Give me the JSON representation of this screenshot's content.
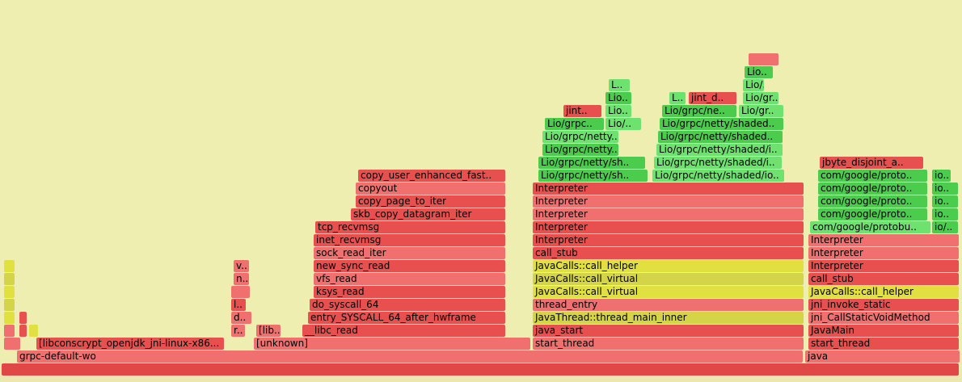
{
  "chart_data": {
    "type": "flamegraph",
    "title": "",
    "colors": {
      "kernel_red": "#e85050",
      "native_red": "#f07070",
      "jit_green": "#4ccc4c",
      "jit_green_light": "#6ee26e",
      "jvm_yellow": "#e0e040",
      "background": "#eeeeb0"
    },
    "frames": [
      {
        "d": 0,
        "s": 0.2,
        "w": 99.6,
        "label": "",
        "c": "#e04848"
      },
      {
        "d": 1,
        "s": 1.8,
        "w": 81.8,
        "label": "grpc-default-wo",
        "c": "#f07070"
      },
      {
        "d": 1,
        "s": 83.7,
        "w": 16.1,
        "label": "java",
        "c": "#f07070"
      },
      {
        "d": 2,
        "s": 0.4,
        "w": 1.8,
        "label": "",
        "c": "#f07070"
      },
      {
        "d": 2,
        "s": 3.8,
        "w": 19.6,
        "label": "[libconscrypt_openjdk_jni-linux-x86...",
        "c": "#e85050"
      },
      {
        "d": 2,
        "s": 26.4,
        "w": 28.8,
        "label": "[unknown]",
        "c": "#f07070"
      },
      {
        "d": 2,
        "s": 55.4,
        "w": 28.2,
        "label": "start_thread",
        "c": "#f07070"
      },
      {
        "d": 2,
        "s": 84.0,
        "w": 15.7,
        "label": "start_thread",
        "c": "#e85050"
      },
      {
        "d": 3,
        "s": 0.4,
        "w": 1.2,
        "label": "",
        "c": "#f07070"
      },
      {
        "d": 3,
        "s": 2.0,
        "w": 0.8,
        "label": "",
        "c": "#e85050"
      },
      {
        "d": 3,
        "s": 3.0,
        "w": 1.0,
        "label": "",
        "c": "#e0e040"
      },
      {
        "d": 3,
        "s": 24.0,
        "w": 1.5,
        "label": "r..",
        "c": "#f07070"
      },
      {
        "d": 3,
        "s": 26.6,
        "w": 2.6,
        "label": "[lib..",
        "c": "#f07070"
      },
      {
        "d": 3,
        "s": 31.4,
        "w": 21.2,
        "label": "__libc_read",
        "c": "#e85050"
      },
      {
        "d": 3,
        "s": 55.4,
        "w": 28.2,
        "label": "java_start",
        "c": "#e85050"
      },
      {
        "d": 3,
        "s": 84.0,
        "w": 15.7,
        "label": "JavaMain",
        "c": "#e85050"
      },
      {
        "d": 4,
        "s": 0.4,
        "w": 1.2,
        "label": "",
        "c": "#e0e040"
      },
      {
        "d": 4,
        "s": 2.0,
        "w": 0.8,
        "label": "",
        "c": "#e85050"
      },
      {
        "d": 4,
        "s": 24.0,
        "w": 2.2,
        "label": "d..",
        "c": "#f07070"
      },
      {
        "d": 4,
        "s": 32.0,
        "w": 20.6,
        "label": "entry_SYSCALL_64_after_hwframe",
        "c": "#e85050"
      },
      {
        "d": 4,
        "s": 55.4,
        "w": 28.2,
        "label": "JavaThread::thread_main_inner",
        "c": "#d4d448"
      },
      {
        "d": 4,
        "s": 84.0,
        "w": 15.7,
        "label": "jni_CallStaticVoidMethod",
        "c": "#f07070"
      },
      {
        "d": 5,
        "s": 0.4,
        "w": 1.2,
        "label": "",
        "c": "#d4d448"
      },
      {
        "d": 5,
        "s": 24.0,
        "w": 1.6,
        "label": "l..",
        "c": "#e85050"
      },
      {
        "d": 5,
        "s": 32.2,
        "w": 20.4,
        "label": "do_syscall_64",
        "c": "#e85050"
      },
      {
        "d": 5,
        "s": 55.4,
        "w": 28.2,
        "label": "thread_entry",
        "c": "#f07070"
      },
      {
        "d": 5,
        "s": 84.0,
        "w": 15.7,
        "label": "jni_invoke_static",
        "c": "#e85050"
      },
      {
        "d": 6,
        "s": 0.4,
        "w": 1.2,
        "label": "",
        "c": "#e0e040"
      },
      {
        "d": 6,
        "s": 24.0,
        "w": 2.0,
        "label": "",
        "c": "#f07070"
      },
      {
        "d": 6,
        "s": 32.6,
        "w": 20.0,
        "label": "ksys_read",
        "c": "#e85050"
      },
      {
        "d": 6,
        "s": 55.4,
        "w": 28.2,
        "label": "JavaCalls::call_virtual",
        "c": "#e0e040"
      },
      {
        "d": 6,
        "s": 84.0,
        "w": 15.7,
        "label": "JavaCalls::call_helper",
        "c": "#e0e040"
      },
      {
        "d": 7,
        "s": 0.4,
        "w": 1.2,
        "label": "",
        "c": "#d4d448"
      },
      {
        "d": 7,
        "s": 24.3,
        "w": 1.7,
        "label": "n..",
        "c": "#f07070"
      },
      {
        "d": 7,
        "s": 32.6,
        "w": 20.0,
        "label": "vfs_read",
        "c": "#f07070"
      },
      {
        "d": 7,
        "s": 55.4,
        "w": 28.2,
        "label": "JavaCalls::call_virtual",
        "c": "#d4d448"
      },
      {
        "d": 7,
        "s": 84.0,
        "w": 15.7,
        "label": "call_stub",
        "c": "#e85050"
      },
      {
        "d": 8,
        "s": 0.4,
        "w": 1.2,
        "label": "",
        "c": "#e0e040"
      },
      {
        "d": 8,
        "s": 24.3,
        "w": 1.7,
        "label": "v..",
        "c": "#f07070"
      },
      {
        "d": 8,
        "s": 32.6,
        "w": 20.0,
        "label": "new_sync_read",
        "c": "#e85050"
      },
      {
        "d": 8,
        "s": 55.4,
        "w": 28.2,
        "label": "JavaCalls::call_helper",
        "c": "#e0e040"
      },
      {
        "d": 8,
        "s": 84.0,
        "w": 15.7,
        "label": "Interpreter",
        "c": "#e85050"
      },
      {
        "d": 9,
        "s": 32.6,
        "w": 20.0,
        "label": "sock_read_iter",
        "c": "#f07070"
      },
      {
        "d": 9,
        "s": 55.4,
        "w": 28.2,
        "label": "call_stub",
        "c": "#e85050"
      },
      {
        "d": 9,
        "s": 84.0,
        "w": 15.7,
        "label": "Interpreter",
        "c": "#f07070"
      },
      {
        "d": 10,
        "s": 32.6,
        "w": 20.0,
        "label": "inet_recvmsg",
        "c": "#e85050"
      },
      {
        "d": 10,
        "s": 55.4,
        "w": 28.2,
        "label": "Interpreter",
        "c": "#e85050"
      },
      {
        "d": 10,
        "s": 84.0,
        "w": 15.7,
        "label": "Interpreter",
        "c": "#f07070"
      },
      {
        "d": 11,
        "s": 32.8,
        "w": 19.8,
        "label": "tcp_recvmsg",
        "c": "#e85050"
      },
      {
        "d": 11,
        "s": 55.4,
        "w": 28.2,
        "label": "Interpreter",
        "c": "#e85050"
      },
      {
        "d": 11,
        "s": 84.2,
        "w": 12.6,
        "label": "com/google/protobu..",
        "c": "#6ee26e"
      },
      {
        "d": 11,
        "s": 96.9,
        "w": 2.8,
        "label": "io/..",
        "c": "#4ccc4c"
      },
      {
        "d": 12,
        "s": 36.5,
        "w": 16.1,
        "label": "skb_copy_datagram_iter",
        "c": "#e85050"
      },
      {
        "d": 12,
        "s": 55.4,
        "w": 28.2,
        "label": "Interpreter",
        "c": "#f07070"
      },
      {
        "d": 12,
        "s": 85.0,
        "w": 11.4,
        "label": "com/google/proto..",
        "c": "#4ccc4c"
      },
      {
        "d": 12,
        "s": 96.9,
        "w": 2.8,
        "label": "io..",
        "c": "#4ccc4c"
      },
      {
        "d": 13,
        "s": 37.0,
        "w": 15.6,
        "label": "copy_page_to_iter",
        "c": "#e85050"
      },
      {
        "d": 13,
        "s": 55.4,
        "w": 28.2,
        "label": "Interpreter",
        "c": "#f07070"
      },
      {
        "d": 13,
        "s": 85.0,
        "w": 11.4,
        "label": "com/google/proto..",
        "c": "#4ccc4c"
      },
      {
        "d": 13,
        "s": 96.9,
        "w": 2.8,
        "label": "io..",
        "c": "#4ccc4c"
      },
      {
        "d": 14,
        "s": 37.0,
        "w": 15.6,
        "label": "copyout",
        "c": "#f07070"
      },
      {
        "d": 14,
        "s": 55.4,
        "w": 28.2,
        "label": "Interpreter",
        "c": "#e85050"
      },
      {
        "d": 14,
        "s": 85.0,
        "w": 11.4,
        "label": "com/google/proto..",
        "c": "#4ccc4c"
      },
      {
        "d": 14,
        "s": 96.9,
        "w": 2.8,
        "label": "io..",
        "c": "#4ccc4c"
      },
      {
        "d": 15,
        "s": 37.2,
        "w": 15.4,
        "label": "copy_user_enhanced_fast..",
        "c": "#e85050"
      },
      {
        "d": 15,
        "s": 56.0,
        "w": 11.4,
        "label": "Lio/grpc/netty/sh..",
        "c": "#4ccc4c"
      },
      {
        "d": 15,
        "s": 67.8,
        "w": 13.8,
        "label": "Lio/grpc/netty/shaded/io..",
        "c": "#6ee26e"
      },
      {
        "d": 15,
        "s": 85.0,
        "w": 11.4,
        "label": "com/google/proto..",
        "c": "#4ccc4c"
      },
      {
        "d": 15,
        "s": 96.9,
        "w": 2.0,
        "label": "io..",
        "c": "#4ccc4c"
      },
      {
        "d": 16,
        "s": 56.0,
        "w": 11.2,
        "label": "Lio/grpc/netty/sh..",
        "c": "#4ccc4c"
      },
      {
        "d": 16,
        "s": 68.0,
        "w": 13.4,
        "label": "Lio/grpc/netty/shaded/i..",
        "c": "#6ee26e"
      },
      {
        "d": 16,
        "s": 85.2,
        "w": 10.8,
        "label": "jbyte_disjoint_a..",
        "c": "#e85050"
      },
      {
        "d": 17,
        "s": 56.4,
        "w": 8.0,
        "label": "Lio/grpc/netty..",
        "c": "#4ccc4c"
      },
      {
        "d": 17,
        "s": 68.2,
        "w": 13.2,
        "label": "Lio/grpc/netty/shaded/i..",
        "c": "#6ee26e"
      },
      {
        "d": 18,
        "s": 56.4,
        "w": 8.0,
        "label": "Lio/grpc/netty..",
        "c": "#6ee26e"
      },
      {
        "d": 18,
        "s": 68.4,
        "w": 13.0,
        "label": "Lio/grpc/netty/shaded..",
        "c": "#4ccc4c"
      },
      {
        "d": 19,
        "s": 56.6,
        "w": 6.2,
        "label": "Lio/grpc..",
        "c": "#4ccc4c"
      },
      {
        "d": 19,
        "s": 62.9,
        "w": 3.8,
        "label": "Lio/..",
        "c": "#6ee26e"
      },
      {
        "d": 19,
        "s": 68.6,
        "w": 12.9,
        "label": "Lio/grpc/netty/shaded..",
        "c": "#4ccc4c"
      },
      {
        "d": 20,
        "s": 58.6,
        "w": 4.0,
        "label": "jint..",
        "c": "#e85050"
      },
      {
        "d": 20,
        "s": 62.9,
        "w": 2.8,
        "label": "Lio..",
        "c": "#6ee26e"
      },
      {
        "d": 20,
        "s": 68.8,
        "w": 7.8,
        "label": "Lio/grpc/ne..",
        "c": "#4ccc4c"
      },
      {
        "d": 20,
        "s": 76.8,
        "w": 4.7,
        "label": "Lio/gr..",
        "c": "#6ee26e"
      },
      {
        "d": 21,
        "s": 62.9,
        "w": 2.8,
        "label": "Lio..",
        "c": "#4ccc4c"
      },
      {
        "d": 21,
        "s": 69.6,
        "w": 1.8,
        "label": "L..",
        "c": "#6ee26e"
      },
      {
        "d": 21,
        "s": 71.6,
        "w": 5.0,
        "label": "jint_d..",
        "c": "#e85050"
      },
      {
        "d": 21,
        "s": 77.2,
        "w": 3.8,
        "label": "Lio/gr..",
        "c": "#6ee26e"
      },
      {
        "d": 22,
        "s": 63.3,
        "w": 2.3,
        "label": "L..",
        "c": "#6ee26e"
      },
      {
        "d": 22,
        "s": 77.2,
        "w": 2.3,
        "label": "Lio/..",
        "c": "#6ee26e"
      },
      {
        "d": 23,
        "s": 77.4,
        "w": 3.0,
        "label": "Lio..",
        "c": "#4ccc4c"
      },
      {
        "d": 24,
        "s": 77.8,
        "w": 3.2,
        "label": "",
        "c": "#f07070"
      }
    ]
  }
}
